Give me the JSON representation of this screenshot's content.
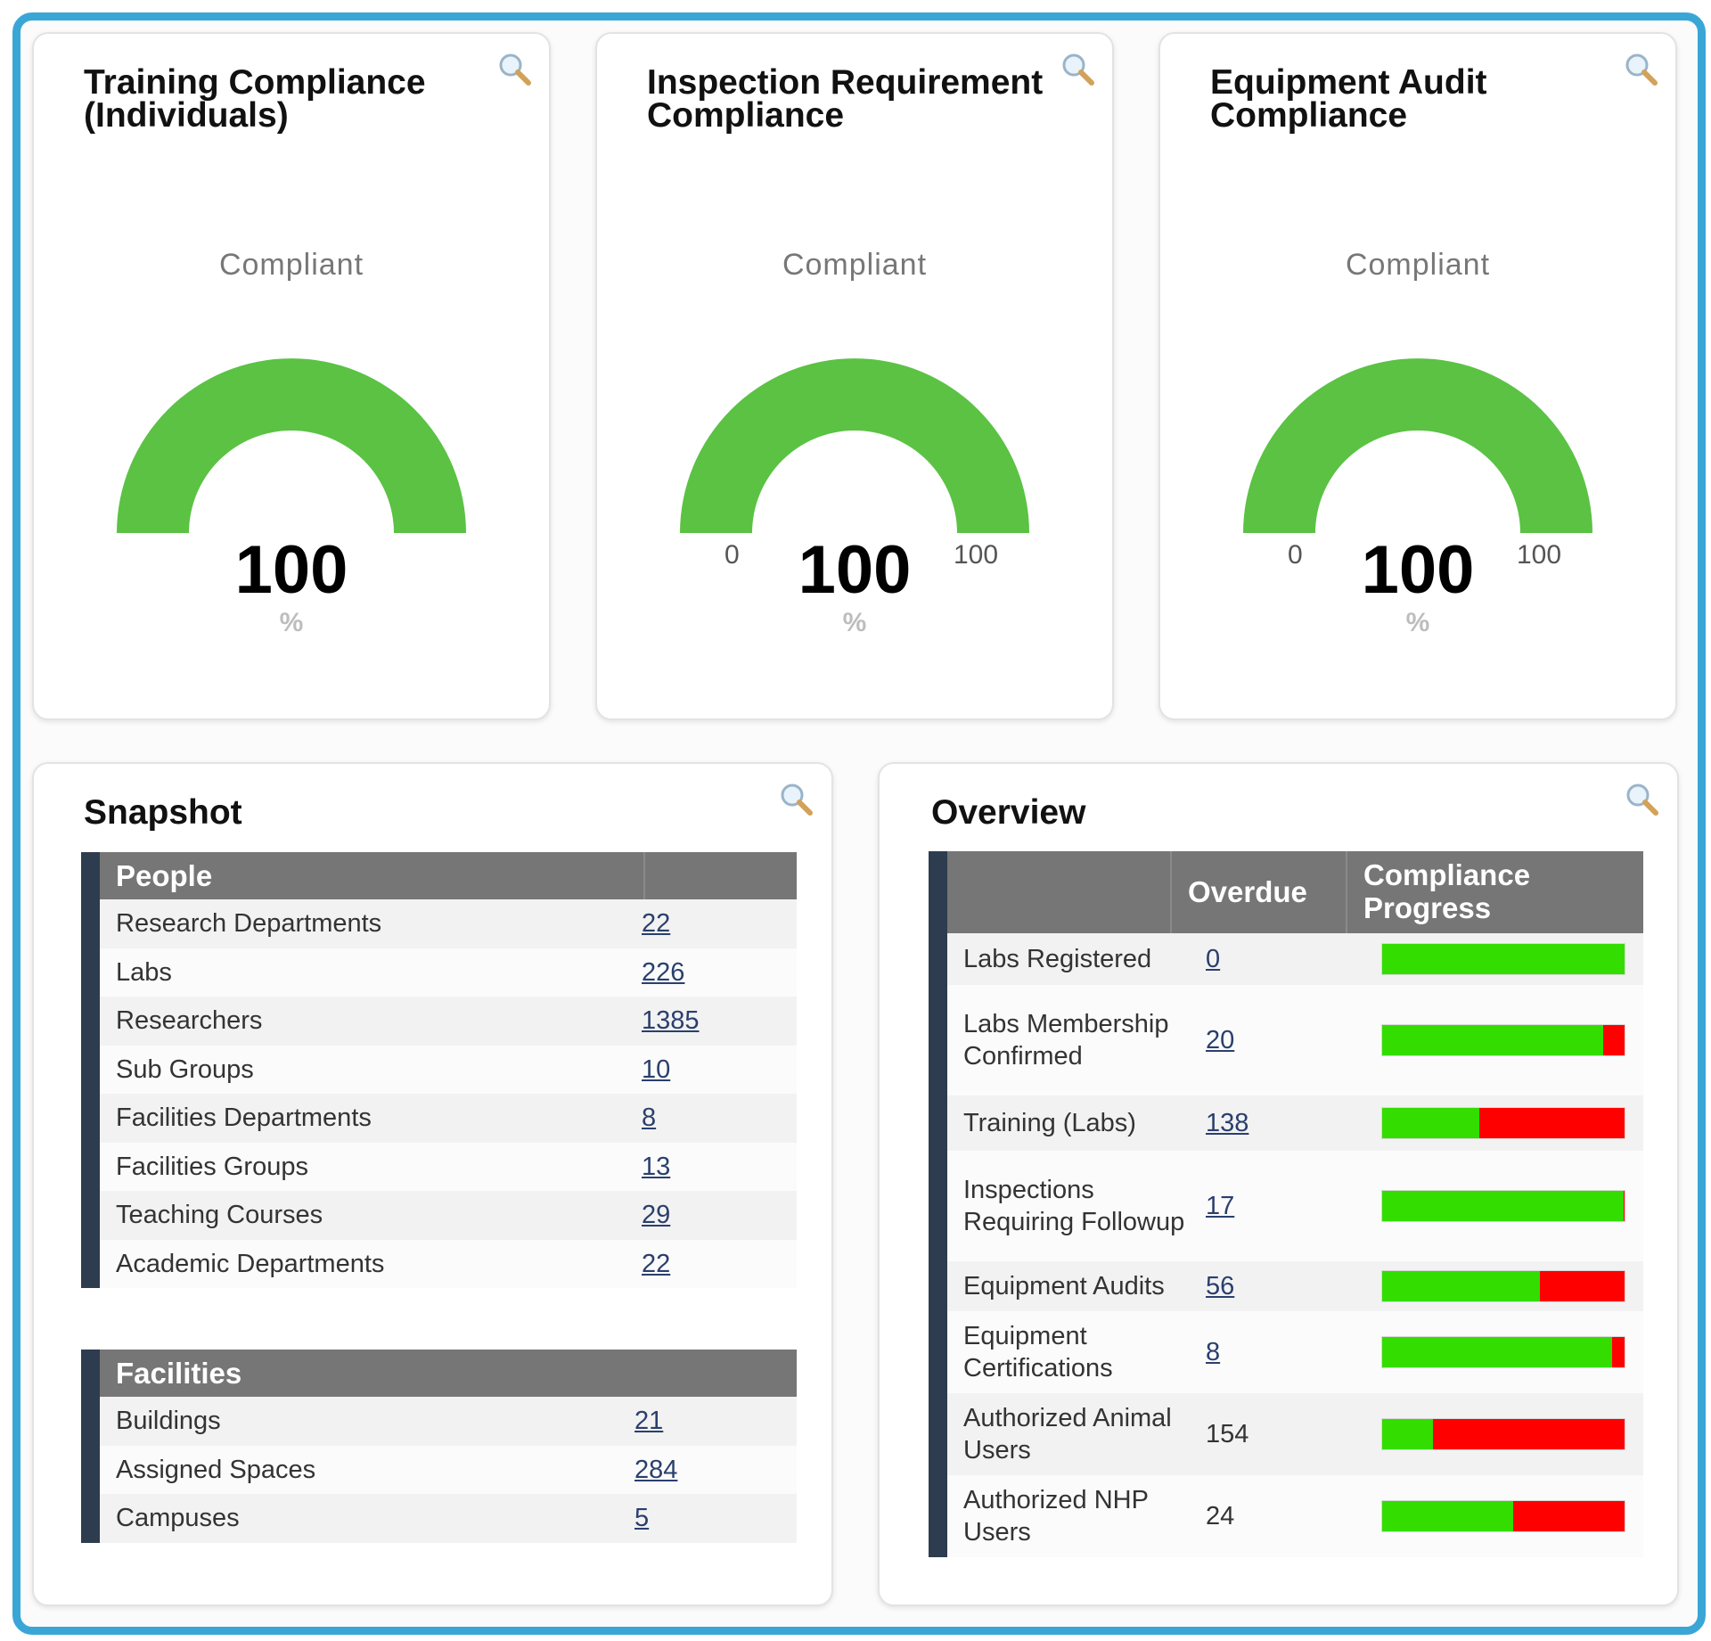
{
  "gauges": [
    {
      "title_line1": "Training Compliance",
      "title_line2": "(Individuals)",
      "label": "Compliant",
      "value": "100",
      "unit": "%",
      "min": "",
      "max": "",
      "percent": 100
    },
    {
      "title_line1": "Inspection Requirement",
      "title_line2": "Compliance",
      "label": "Compliant",
      "value": "100",
      "unit": "%",
      "min": "0",
      "max": "100",
      "percent": 100
    },
    {
      "title_line1": "Equipment Audit",
      "title_line2": "Compliance",
      "label": "Compliant",
      "value": "100",
      "unit": "%",
      "min": "0",
      "max": "100",
      "percent": 100
    }
  ],
  "snapshot": {
    "title": "Snapshot",
    "people": {
      "header": "People",
      "rows": [
        {
          "label": "Research Departments",
          "value": "22"
        },
        {
          "label": "Labs",
          "value": "226"
        },
        {
          "label": "Researchers",
          "value": "1385"
        },
        {
          "label": "Sub Groups",
          "value": "10"
        },
        {
          "label": "Facilities Departments",
          "value": "8"
        },
        {
          "label": "Facilities Groups",
          "value": "13"
        },
        {
          "label": "Teaching Courses",
          "value": "29"
        },
        {
          "label": "Academic Departments",
          "value": "22"
        }
      ]
    },
    "facilities": {
      "header": "Facilities",
      "rows": [
        {
          "label": "Buildings",
          "value": "21"
        },
        {
          "label": "Assigned Spaces",
          "value": "284"
        },
        {
          "label": "Campuses",
          "value": "5"
        }
      ]
    }
  },
  "overview": {
    "title": "Overview",
    "col_overdue": "Overdue",
    "col_progress_line1": "Compliance",
    "col_progress_line2": "Progress",
    "rows": [
      {
        "label": "Labs Registered",
        "overdue": "0",
        "link": true,
        "progress": 1.0
      },
      {
        "label": "Labs Membership Confirmed",
        "overdue": "20",
        "link": true,
        "progress": 0.91
      },
      {
        "label": "Training (Labs)",
        "overdue": "138",
        "link": true,
        "progress": 0.4
      },
      {
        "label": "Inspections Requiring Followup",
        "overdue": "17",
        "link": true,
        "progress": 0.995
      },
      {
        "label": "Equipment Audits",
        "overdue": "56",
        "link": true,
        "progress": 0.65
      },
      {
        "label": "Equipment Certifications",
        "overdue": "8",
        "link": true,
        "progress": 0.95
      },
      {
        "label": "Authorized Animal Users",
        "overdue": "154",
        "link": false,
        "progress": 0.21
      },
      {
        "label": "Authorized NHP Users",
        "overdue": "24",
        "link": false,
        "progress": 0.54
      }
    ]
  },
  "colors": {
    "frame": "#3aa6d6",
    "gauge_green": "#5bc244",
    "progress_green": "#33dd00",
    "progress_red": "#ff0000",
    "header_gray": "#767676",
    "row_accent": "#2e3c4f"
  },
  "icons": {
    "zoom": "magnifier-icon"
  }
}
